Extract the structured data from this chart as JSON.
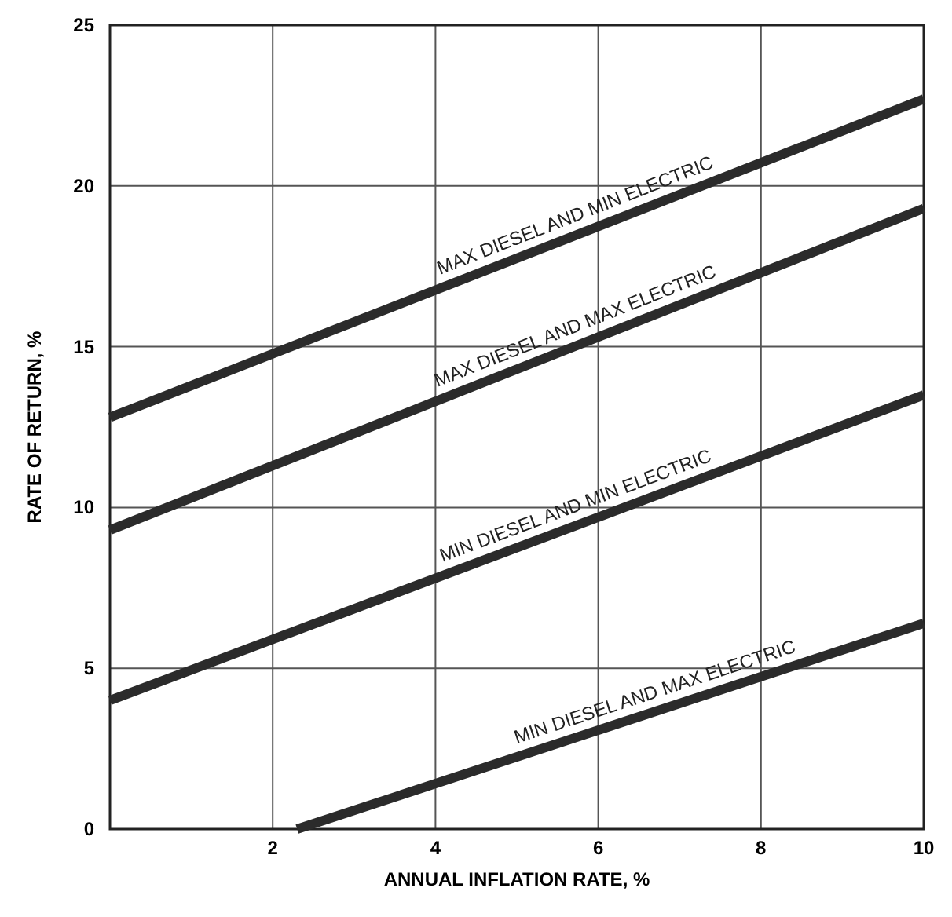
{
  "chart_data": {
    "type": "line",
    "xlabel": "ANNUAL INFLATION RATE, %",
    "ylabel": "RATE OF RETURN, %",
    "xlim": [
      0,
      10
    ],
    "xticks": [
      {
        "value": 0,
        "label": null
      },
      2,
      4,
      6,
      8,
      10
    ],
    "ylim": [
      0,
      25
    ],
    "yticks": [
      0,
      5,
      10,
      15,
      20,
      25
    ],
    "grid": true,
    "line_style": "solid",
    "series": [
      {
        "color": "#2b2b2b",
        "x": [
          0,
          10
        ],
        "values": [
          12.8,
          22.7
        ]
      },
      {
        "color": "#2b2b2b",
        "x": [
          0,
          10
        ],
        "values": [
          9.3,
          19.3
        ]
      },
      {
        "color": "#2b2b2b",
        "x": [
          0,
          10
        ],
        "values": [
          4.0,
          13.5
        ]
      },
      {
        "color": "#2b2b2b",
        "x": [
          2.3,
          10
        ],
        "values": [
          0,
          6.4
        ]
      }
    ],
    "annotations": [
      "MAX DIESEL AND MIN ELECTRIC",
      "MAX DIESEL AND MAX ELECTRIC",
      "MIN DIESEL AND MIN ELECTRIC",
      "MIN DIESEL AND MAX ELECTRIC"
    ]
  }
}
